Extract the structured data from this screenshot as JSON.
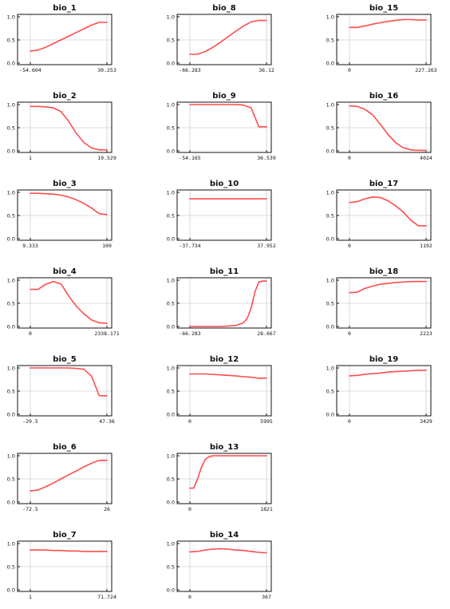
{
  "colors": {
    "line": "#ff4d4d",
    "grid": "#d0d0d0",
    "frame": "#111111",
    "background": "#ffffff"
  },
  "chart_data": [
    {
      "type": "line",
      "title": "bio_1",
      "ylim": [
        0,
        1
      ],
      "yticks": [
        "0.0",
        "0.5",
        "1.0"
      ],
      "xticks": [
        "-54.604",
        "30.253"
      ],
      "grid": true,
      "x": [
        0,
        0.1,
        0.2,
        0.3,
        0.4,
        0.5,
        0.6,
        0.7,
        0.8,
        0.9,
        1
      ],
      "values": [
        0.26,
        0.28,
        0.34,
        0.42,
        0.5,
        0.58,
        0.66,
        0.74,
        0.82,
        0.88,
        0.88
      ]
    },
    {
      "type": "line",
      "title": "bio_2",
      "ylim": [
        0,
        1
      ],
      "yticks": [
        "0.0",
        "0.5",
        "1.0"
      ],
      "xticks": [
        "1",
        "19.529"
      ],
      "grid": true,
      "x": [
        0,
        0.1,
        0.2,
        0.3,
        0.4,
        0.5,
        0.6,
        0.7,
        0.8,
        0.9,
        1
      ],
      "values": [
        0.96,
        0.96,
        0.95,
        0.93,
        0.85,
        0.64,
        0.38,
        0.18,
        0.06,
        0.02,
        0.02
      ]
    },
    {
      "type": "line",
      "title": "bio_3",
      "ylim": [
        0,
        1
      ],
      "yticks": [
        "0.0",
        "0.5",
        "1.0"
      ],
      "xticks": [
        "9.333",
        "100"
      ],
      "grid": true,
      "x": [
        0,
        0.1,
        0.2,
        0.3,
        0.4,
        0.5,
        0.6,
        0.7,
        0.8,
        0.9,
        1
      ],
      "values": [
        0.98,
        0.98,
        0.97,
        0.96,
        0.94,
        0.9,
        0.84,
        0.76,
        0.66,
        0.54,
        0.52
      ]
    },
    {
      "type": "line",
      "title": "bio_4",
      "ylim": [
        0,
        1
      ],
      "yticks": [
        "0.0",
        "0.5",
        "1.0"
      ],
      "xticks": [
        "0",
        "2338.171"
      ],
      "grid": true,
      "x": [
        0,
        0.1,
        0.2,
        0.3,
        0.4,
        0.5,
        0.6,
        0.7,
        0.8,
        0.9,
        1
      ],
      "values": [
        0.8,
        0.8,
        0.91,
        0.97,
        0.92,
        0.66,
        0.44,
        0.27,
        0.14,
        0.08,
        0.07
      ]
    },
    {
      "type": "line",
      "title": "bio_5",
      "ylim": [
        0,
        1
      ],
      "yticks": [
        "0.0",
        "0.5",
        "1.0"
      ],
      "xticks": [
        "-29.5",
        "47.36"
      ],
      "grid": true,
      "x": [
        0,
        0.1,
        0.2,
        0.3,
        0.4,
        0.5,
        0.6,
        0.7,
        0.8,
        0.9,
        1
      ],
      "values": [
        1.0,
        1.0,
        1.0,
        1.0,
        1.0,
        1.0,
        0.99,
        0.97,
        0.82,
        0.4,
        0.4
      ]
    },
    {
      "type": "line",
      "title": "bio_6",
      "ylim": [
        0,
        1
      ],
      "yticks": [
        "0.0",
        "0.5",
        "1.0"
      ],
      "xticks": [
        "-72.5",
        "26"
      ],
      "grid": true,
      "x": [
        0,
        0.1,
        0.2,
        0.3,
        0.4,
        0.5,
        0.6,
        0.7,
        0.8,
        0.9,
        1
      ],
      "values": [
        0.24,
        0.26,
        0.33,
        0.41,
        0.5,
        0.59,
        0.67,
        0.76,
        0.84,
        0.9,
        0.9
      ]
    },
    {
      "type": "line",
      "title": "bio_7",
      "ylim": [
        0,
        1
      ],
      "yticks": [
        "0.0",
        "0.5",
        "1.0"
      ],
      "xticks": [
        "1",
        "71.724"
      ],
      "grid": true,
      "x": [
        0,
        0.1,
        0.2,
        0.3,
        0.4,
        0.5,
        0.6,
        0.7,
        0.8,
        0.9,
        1
      ],
      "values": [
        0.86,
        0.86,
        0.86,
        0.85,
        0.85,
        0.84,
        0.84,
        0.83,
        0.83,
        0.83,
        0.83
      ]
    },
    {
      "type": "line",
      "title": "bio_8",
      "ylim": [
        0,
        1
      ],
      "yticks": [
        "0.0",
        "0.5",
        "1.0"
      ],
      "xticks": [
        "-66.283",
        "36.12"
      ],
      "grid": true,
      "x": [
        0,
        0.1,
        0.2,
        0.3,
        0.4,
        0.5,
        0.6,
        0.7,
        0.8,
        0.9,
        1
      ],
      "values": [
        0.19,
        0.19,
        0.25,
        0.34,
        0.45,
        0.57,
        0.69,
        0.8,
        0.89,
        0.92,
        0.92
      ]
    },
    {
      "type": "line",
      "title": "bio_9",
      "ylim": [
        0,
        1
      ],
      "yticks": [
        "0.0",
        "0.5",
        "1.0"
      ],
      "xticks": [
        "-54.165",
        "36.539"
      ],
      "grid": true,
      "x": [
        0,
        0.1,
        0.2,
        0.3,
        0.4,
        0.5,
        0.6,
        0.7,
        0.8,
        0.9,
        1
      ],
      "values": [
        1.0,
        1.0,
        1.0,
        1.0,
        1.0,
        1.0,
        1.0,
        0.99,
        0.93,
        0.52,
        0.52
      ]
    },
    {
      "type": "line",
      "title": "bio_10",
      "ylim": [
        0,
        1
      ],
      "yticks": [
        "0.0",
        "0.5",
        "1.0"
      ],
      "xticks": [
        "-37.734",
        "37.952"
      ],
      "grid": true,
      "x": [
        0,
        0.1,
        0.2,
        0.3,
        0.4,
        0.5,
        0.6,
        0.7,
        0.8,
        0.9,
        1
      ],
      "values": [
        0.86,
        0.86,
        0.86,
        0.86,
        0.86,
        0.86,
        0.86,
        0.86,
        0.86,
        0.86,
        0.86
      ]
    },
    {
      "type": "line",
      "title": "bio_11",
      "ylim": [
        0,
        1
      ],
      "yticks": [
        "0.0",
        "0.5",
        "1.0"
      ],
      "xticks": [
        "-66.283",
        "28.667"
      ],
      "grid": true,
      "x": [
        0,
        0.1,
        0.2,
        0.3,
        0.4,
        0.5,
        0.6,
        0.7,
        0.75,
        0.8,
        0.85,
        0.9,
        0.95,
        1
      ],
      "values": [
        0.0,
        0.0,
        0.0,
        0.0,
        0.0,
        0.01,
        0.02,
        0.08,
        0.18,
        0.4,
        0.75,
        0.96,
        0.98,
        0.98
      ]
    },
    {
      "type": "line",
      "title": "bio_12",
      "ylim": [
        0,
        1
      ],
      "yticks": [
        "0.0",
        "0.5",
        "1.0"
      ],
      "xticks": [
        "0",
        "5995"
      ],
      "grid": true,
      "x": [
        0,
        0.1,
        0.2,
        0.3,
        0.4,
        0.5,
        0.6,
        0.7,
        0.8,
        0.9,
        1
      ],
      "values": [
        0.87,
        0.87,
        0.87,
        0.86,
        0.85,
        0.84,
        0.83,
        0.81,
        0.8,
        0.78,
        0.78
      ]
    },
    {
      "type": "line",
      "title": "bio_13",
      "ylim": [
        0,
        1
      ],
      "yticks": [
        "0.0",
        "0.5",
        "1.0"
      ],
      "xticks": [
        "0",
        "1821"
      ],
      "grid": true,
      "x": [
        0,
        0.05,
        0.1,
        0.15,
        0.2,
        0.25,
        0.3,
        0.4,
        0.5,
        0.6,
        0.7,
        0.8,
        0.9,
        1
      ],
      "values": [
        0.3,
        0.3,
        0.5,
        0.75,
        0.92,
        0.98,
        1.0,
        1.0,
        1.0,
        1.0,
        1.0,
        1.0,
        1.0,
        1.0
      ]
    },
    {
      "type": "line",
      "title": "bio_14",
      "ylim": [
        0,
        1
      ],
      "yticks": [
        "0.0",
        "0.5",
        "1.0"
      ],
      "xticks": [
        "0",
        "367"
      ],
      "grid": true,
      "x": [
        0,
        0.1,
        0.2,
        0.3,
        0.4,
        0.5,
        0.6,
        0.7,
        0.8,
        0.9,
        1
      ],
      "values": [
        0.82,
        0.83,
        0.86,
        0.88,
        0.89,
        0.88,
        0.86,
        0.85,
        0.83,
        0.81,
        0.8
      ]
    },
    {
      "type": "line",
      "title": "bio_15",
      "ylim": [
        0,
        1
      ],
      "yticks": [
        "0.0",
        "0.5",
        "1.0"
      ],
      "xticks": [
        "0",
        "227.263"
      ],
      "grid": true,
      "x": [
        0,
        0.1,
        0.2,
        0.3,
        0.4,
        0.5,
        0.6,
        0.7,
        0.8,
        0.9,
        1
      ],
      "values": [
        0.77,
        0.77,
        0.8,
        0.84,
        0.87,
        0.9,
        0.92,
        0.94,
        0.94,
        0.93,
        0.93
      ]
    },
    {
      "type": "line",
      "title": "bio_16",
      "ylim": [
        0,
        1
      ],
      "yticks": [
        "0.0",
        "0.5",
        "1.0"
      ],
      "xticks": [
        "0",
        "4024"
      ],
      "grid": true,
      "x": [
        0,
        0.1,
        0.2,
        0.3,
        0.4,
        0.5,
        0.6,
        0.7,
        0.8,
        0.9,
        1
      ],
      "values": [
        0.97,
        0.96,
        0.9,
        0.78,
        0.58,
        0.36,
        0.18,
        0.07,
        0.02,
        0.01,
        0.01
      ]
    },
    {
      "type": "line",
      "title": "bio_17",
      "ylim": [
        0,
        1
      ],
      "yticks": [
        "0.0",
        "0.5",
        "1.0"
      ],
      "xticks": [
        "0",
        "1192"
      ],
      "grid": true,
      "x": [
        0,
        0.1,
        0.2,
        0.3,
        0.4,
        0.5,
        0.6,
        0.7,
        0.8,
        0.9,
        1
      ],
      "values": [
        0.78,
        0.8,
        0.86,
        0.9,
        0.89,
        0.82,
        0.71,
        0.58,
        0.4,
        0.28,
        0.28
      ]
    },
    {
      "type": "line",
      "title": "bio_18",
      "ylim": [
        0,
        1
      ],
      "yticks": [
        "0.0",
        "0.5",
        "1.0"
      ],
      "xticks": [
        "0",
        "2223"
      ],
      "grid": true,
      "x": [
        0,
        0.1,
        0.2,
        0.3,
        0.4,
        0.5,
        0.6,
        0.7,
        0.8,
        0.9,
        1
      ],
      "values": [
        0.73,
        0.74,
        0.82,
        0.87,
        0.91,
        0.93,
        0.95,
        0.96,
        0.97,
        0.97,
        0.97
      ]
    },
    {
      "type": "line",
      "title": "bio_19",
      "ylim": [
        0,
        1
      ],
      "yticks": [
        "0.0",
        "0.5",
        "1.0"
      ],
      "xticks": [
        "0",
        "3429"
      ],
      "grid": true,
      "x": [
        0,
        0.1,
        0.2,
        0.3,
        0.4,
        0.5,
        0.6,
        0.7,
        0.8,
        0.9,
        1
      ],
      "values": [
        0.83,
        0.84,
        0.86,
        0.88,
        0.89,
        0.91,
        0.92,
        0.93,
        0.94,
        0.95,
        0.95
      ]
    }
  ]
}
